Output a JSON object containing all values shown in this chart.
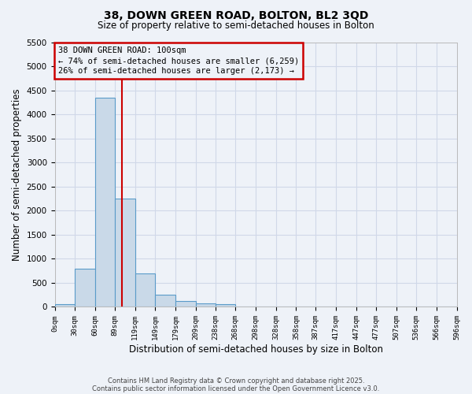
{
  "title_line1": "38, DOWN GREEN ROAD, BOLTON, BL2 3QD",
  "title_line2": "Size of property relative to semi-detached houses in Bolton",
  "xlabel": "Distribution of semi-detached houses by size in Bolton",
  "ylabel": "Number of semi-detached properties",
  "bin_edges": [
    0,
    30,
    60,
    89,
    119,
    149,
    179,
    209,
    238,
    268,
    298,
    328,
    358,
    387,
    417,
    447,
    477,
    507,
    536,
    566,
    596
  ],
  "bar_heights": [
    50,
    800,
    4350,
    2250,
    700,
    250,
    120,
    80,
    60,
    0,
    0,
    0,
    0,
    0,
    0,
    0,
    0,
    0,
    0,
    0
  ],
  "bar_color": "#c9d9e8",
  "bar_edge_color": "#5a9bc9",
  "property_size": 100,
  "property_line_color": "#cc0000",
  "annotation_text": "38 DOWN GREEN ROAD: 100sqm\n← 74% of semi-detached houses are smaller (6,259)\n26% of semi-detached houses are larger (2,173) →",
  "annotation_box_edge_color": "#cc0000",
  "annotation_text_color": "#000000",
  "ylim": [
    0,
    5500
  ],
  "yticks": [
    0,
    500,
    1000,
    1500,
    2000,
    2500,
    3000,
    3500,
    4000,
    4500,
    5000,
    5500
  ],
  "grid_color": "#d0d8e8",
  "background_color": "#eef2f8",
  "tick_labels": [
    "0sqm",
    "30sqm",
    "60sqm",
    "89sqm",
    "119sqm",
    "149sqm",
    "179sqm",
    "209sqm",
    "238sqm",
    "268sqm",
    "298sqm",
    "328sqm",
    "358sqm",
    "387sqm",
    "417sqm",
    "447sqm",
    "477sqm",
    "507sqm",
    "536sqm",
    "566sqm",
    "596sqm"
  ],
  "footer_line1": "Contains HM Land Registry data © Crown copyright and database right 2025.",
  "footer_line2": "Contains public sector information licensed under the Open Government Licence v3.0.",
  "figsize": [
    6.0,
    5.0
  ],
  "dpi": 100
}
